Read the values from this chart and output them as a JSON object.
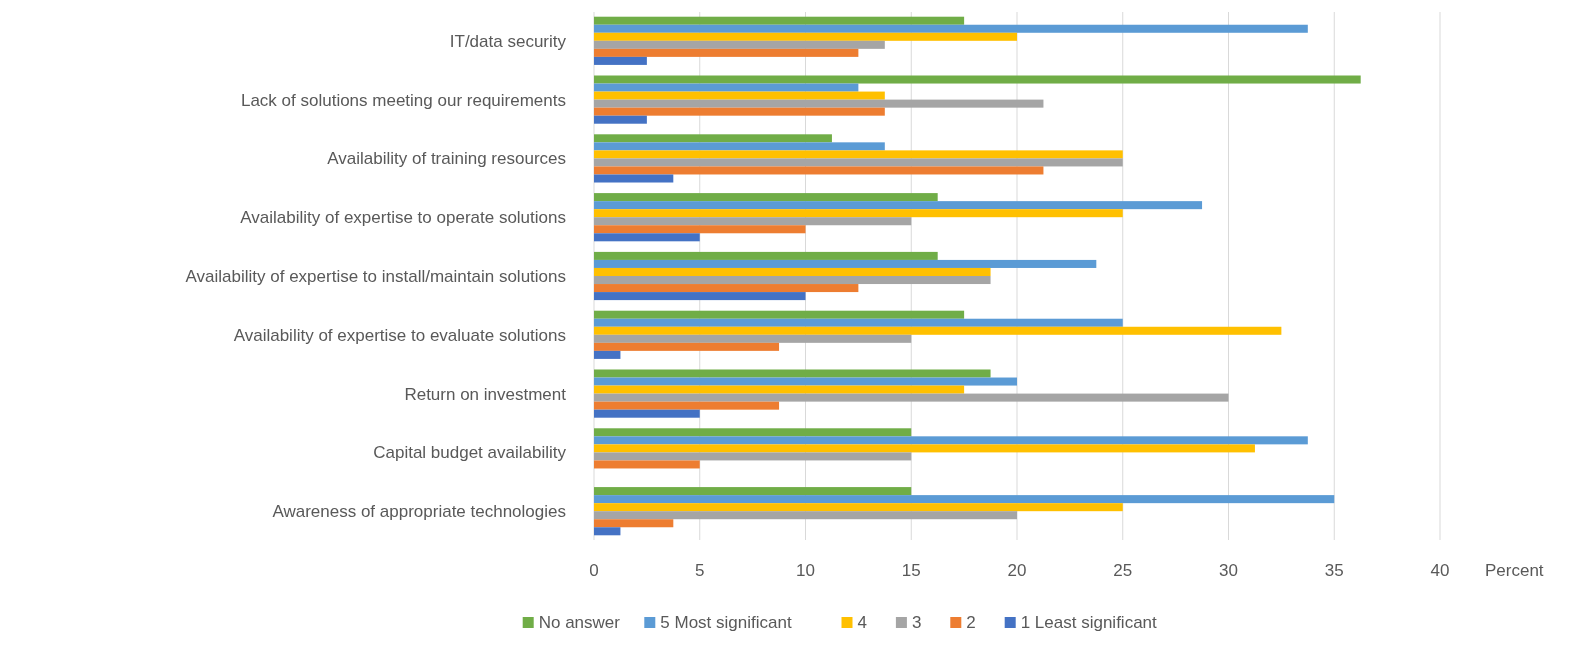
{
  "chart_data": {
    "type": "bar",
    "orientation": "horizontal",
    "xlabel": "Percent",
    "categories": [
      "IT/data security",
      "Lack of solutions meeting our requirements",
      "Availability of training resources",
      "Availability of expertise to operate solutions",
      "Availability of expertise to install/maintain solutions",
      "Availability of expertise to evaluate solutions",
      "Return on investment",
      "Capital budget availability",
      "Awareness of appropriate technologies"
    ],
    "series": [
      {
        "name": "No answer",
        "color": "#70ad47",
        "values": [
          17.5,
          36.25,
          11.25,
          16.25,
          16.25,
          17.5,
          18.75,
          15,
          15
        ]
      },
      {
        "name": "5 Most significant",
        "color": "#5b9bd5",
        "values": [
          33.75,
          12.5,
          13.75,
          28.75,
          23.75,
          25,
          20,
          33.75,
          35
        ]
      },
      {
        "name": "4",
        "color": "#ffc000",
        "values": [
          20,
          13.75,
          25,
          25,
          18.75,
          32.5,
          17.5,
          31.25,
          25
        ]
      },
      {
        "name": "3",
        "color": "#a5a5a5",
        "values": [
          13.75,
          21.25,
          25,
          15,
          18.75,
          15,
          30,
          15,
          20
        ]
      },
      {
        "name": "2",
        "color": "#ed7d31",
        "values": [
          12.5,
          13.75,
          21.25,
          10,
          12.5,
          8.75,
          8.75,
          5,
          3.75
        ]
      },
      {
        "name": "1 Least significant",
        "color": "#4472c4",
        "values": [
          2.5,
          2.5,
          3.75,
          5,
          10,
          1.25,
          5,
          0,
          1.25
        ]
      }
    ],
    "xlim": [
      0,
      40
    ],
    "xticks": [
      0,
      5,
      10,
      15,
      20,
      25,
      30,
      35,
      40
    ],
    "grid": "x",
    "legend": "bottom"
  }
}
